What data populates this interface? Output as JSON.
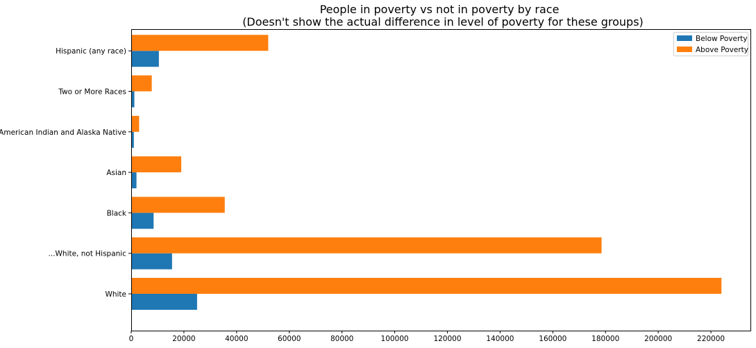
{
  "chart_data": {
    "type": "bar",
    "orientation": "horizontal",
    "title": "People in poverty vs not in poverty by race",
    "subtitle": "(Doesn't show the actual difference in level of poverty for these groups)",
    "xlabel": "",
    "ylabel": "",
    "xlim": [
      0,
      235000
    ],
    "xticks": [
      0,
      20000,
      40000,
      60000,
      80000,
      100000,
      120000,
      140000,
      160000,
      180000,
      200000,
      220000
    ],
    "grid": false,
    "legend_position": "top-right",
    "categories": [
      "White",
      "...White, not Hispanic",
      "Black",
      "Asian",
      "American Indian and Alaska Native",
      "Two or More Races",
      "Hispanic (any race)"
    ],
    "series": [
      {
        "name": "Below Poverty",
        "color": "#1f77b4",
        "values": [
          25000,
          15500,
          8500,
          2000,
          1000,
          1200,
          10500
        ]
      },
      {
        "name": "Above Poverty",
        "color": "#ff7f0e",
        "values": [
          224000,
          178500,
          35500,
          19000,
          3000,
          7800,
          52000
        ]
      }
    ]
  }
}
